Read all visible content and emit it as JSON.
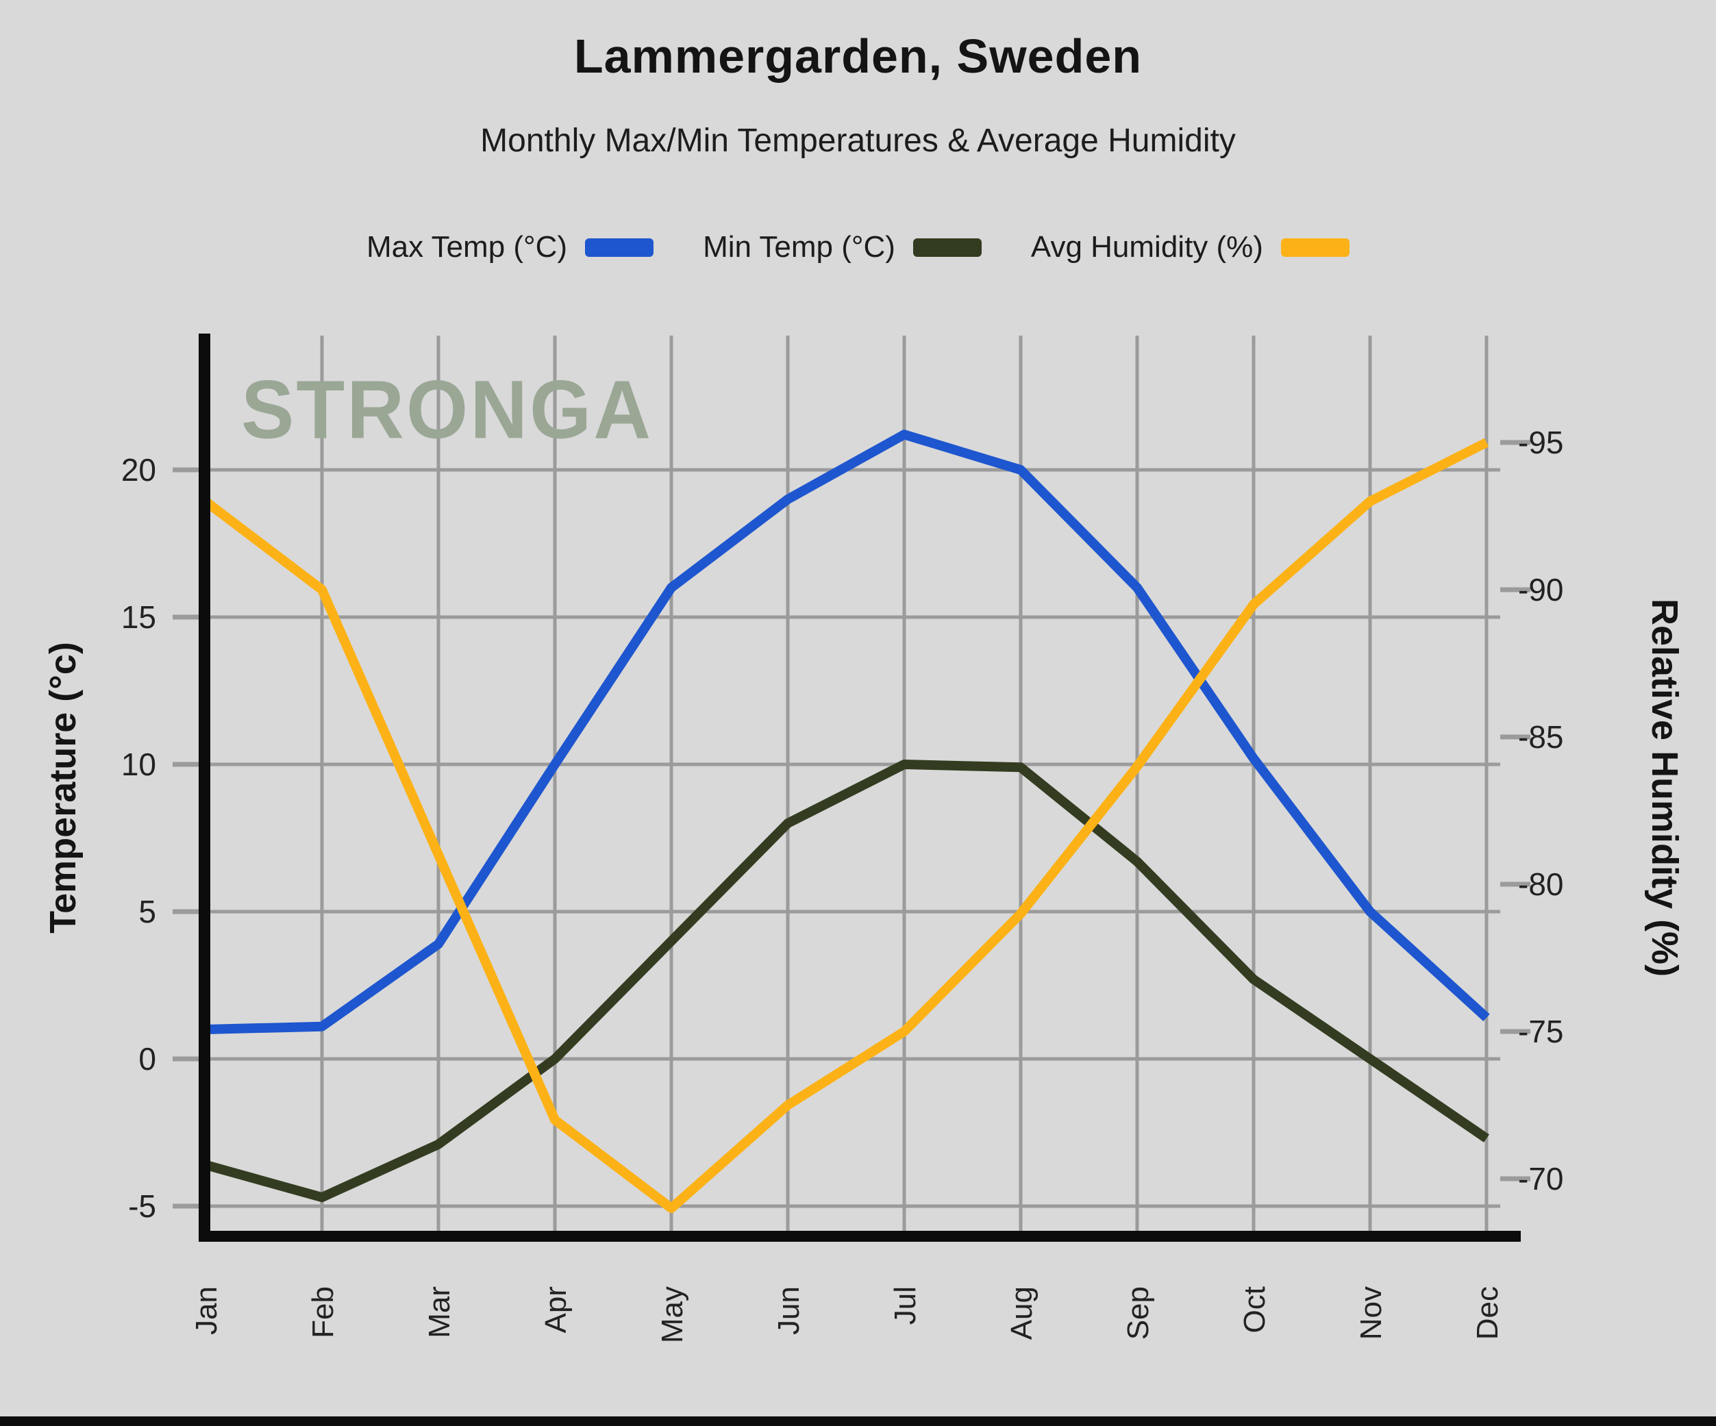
{
  "header": {
    "title": "Lammergarden, Sweden",
    "subtitle": "Monthly Max/Min Temperatures & Average Humidity"
  },
  "watermark": "STRONGA",
  "legend": {
    "items": [
      {
        "label": "Max Temp (°C)",
        "color": "#1e56cf"
      },
      {
        "label": "Min Temp (°C)",
        "color": "#333c20"
      },
      {
        "label": "Avg Humidity (%)",
        "color": "#fcb216"
      }
    ]
  },
  "chart_data": {
    "type": "line",
    "categories": [
      "Jan",
      "Feb",
      "Mar",
      "Apr",
      "May",
      "Jun",
      "Jul",
      "Aug",
      "Sep",
      "Oct",
      "Nov",
      "Dec"
    ],
    "series": [
      {
        "name": "Max Temp (°C)",
        "axis": "temperature",
        "color": "#1e56cf",
        "values": [
          1,
          1.1,
          3.9,
          10,
          16,
          19,
          21.2,
          20,
          16,
          10.2,
          5,
          1.4
        ]
      },
      {
        "name": "Min Temp (°C)",
        "axis": "temperature",
        "color": "#333c20",
        "values": [
          -3.6,
          -4.7,
          -2.9,
          0,
          4,
          8,
          10,
          9.9,
          6.7,
          2.7,
          0,
          -2.7
        ]
      },
      {
        "name": "Avg Humidity (%)",
        "axis": "humidity",
        "color": "#fcb216",
        "values": [
          93,
          90,
          81,
          72,
          69,
          72.5,
          75,
          79,
          84,
          89.5,
          93,
          95
        ]
      }
    ],
    "left_axis": {
      "label": "Temperature (°c)",
      "tick_values": [
        20,
        15,
        10,
        5,
        0,
        -5
      ],
      "tick_labels": [
        "20",
        "15",
        "10",
        "5",
        "0",
        "-5"
      ],
      "range": [
        -6.0,
        24.6
      ]
    },
    "right_axis": {
      "label": "Relative Humidity (%)",
      "tick_values": [
        95,
        90,
        85,
        80,
        75,
        70
      ],
      "tick_labels": [
        "-95",
        "-90",
        "-85",
        "-80",
        "-75",
        "-70"
      ],
      "range": [
        68.0,
        98.6
      ]
    },
    "grid": true,
    "legend_position": "top",
    "colors": {
      "background": "#d9d9d9",
      "gridline": "#9b9b9b",
      "axis_spine": "#0c0c0c",
      "tick_text": "#222222",
      "watermark": "#9aa795"
    }
  }
}
